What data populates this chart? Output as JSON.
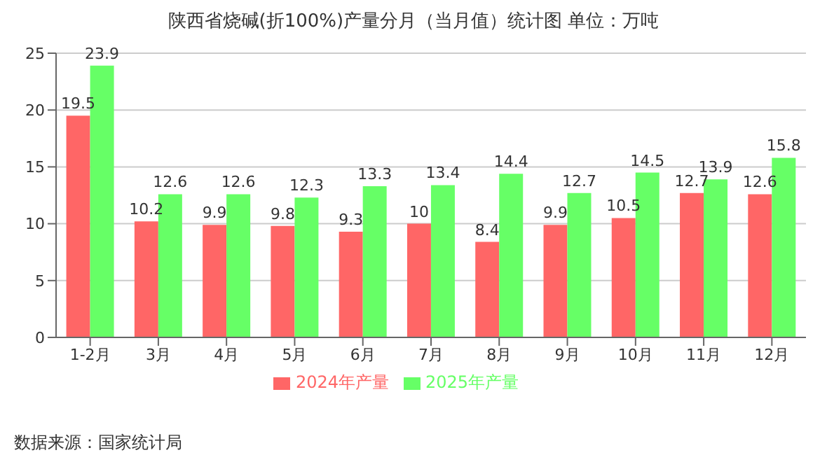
{
  "chart_data": {
    "type": "bar",
    "title": "陕西省烧碱(折100%)产量分月（当月值）统计图 单位：万吨",
    "categories": [
      "1-2月",
      "3月",
      "4月",
      "5月",
      "6月",
      "7月",
      "8月",
      "9月",
      "10月",
      "11月",
      "12月"
    ],
    "series": [
      {
        "name": "2024年产量",
        "color": "#ff6666",
        "values": [
          19.5,
          10.2,
          9.9,
          9.8,
          9.3,
          10,
          8.4,
          9.9,
          10.5,
          12.7,
          12.6
        ]
      },
      {
        "name": "2025年产量",
        "color": "#66ff66",
        "values": [
          23.9,
          12.6,
          12.6,
          12.3,
          13.3,
          13.4,
          14.4,
          12.7,
          14.5,
          13.9,
          15.8
        ]
      }
    ],
    "ylim": [
      0,
      25
    ],
    "yticks": [
      0,
      5,
      10,
      15,
      20,
      25
    ],
    "grid": "y",
    "legend": "bottom",
    "data_labels": true,
    "annotations": [
      "数据来源：国家统计局"
    ]
  }
}
